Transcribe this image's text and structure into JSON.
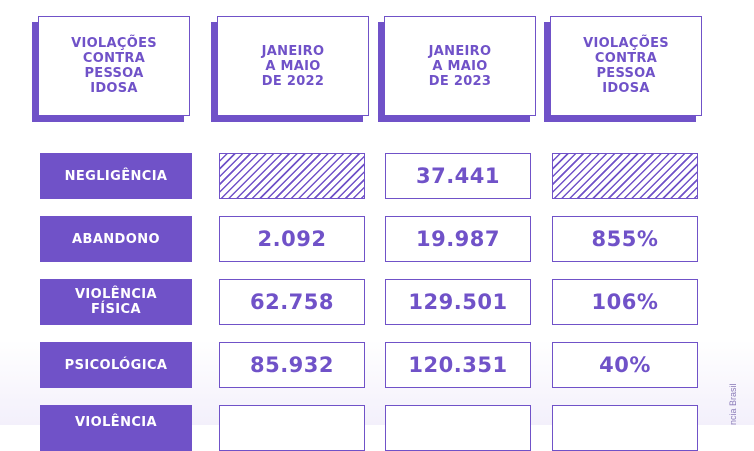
{
  "chart_data": {
    "type": "table",
    "columns": [
      "VIOLAÇÕES\nCONTRA\nPESSOA\nIDOSA",
      "JANEIRO\nA MAIO\nDE 2022",
      "JANEIRO\nA MAIO\nDE 2023",
      "VIOLAÇÕES\nCONTRA\nPESSOA\nIDOSA"
    ],
    "rows": [
      {
        "label": "NEGLIGÊNCIA",
        "values": [
          "",
          "37.441",
          ""
        ],
        "hatched": [
          true,
          false,
          true
        ]
      },
      {
        "label": "ABANDONO",
        "values": [
          "2.092",
          "19.987",
          "855%"
        ],
        "hatched": [
          false,
          false,
          false
        ]
      },
      {
        "label": "VIOLÊNCIA\nFÍSICA",
        "values": [
          "62.758",
          "129.501",
          "106%"
        ],
        "hatched": [
          false,
          false,
          false
        ]
      },
      {
        "label": "PSICOLÓGICA",
        "values": [
          "85.932",
          "120.351",
          "40%"
        ],
        "hatched": [
          false,
          false,
          false
        ]
      },
      {
        "label": "VIOLÊNCIA",
        "values": [
          "",
          "",
          ""
        ],
        "hatched": [
          false,
          false,
          false
        ]
      }
    ]
  },
  "credit": "ncia Brasil",
  "colors": {
    "accent": "#7052c8",
    "background": "#ffffff"
  }
}
